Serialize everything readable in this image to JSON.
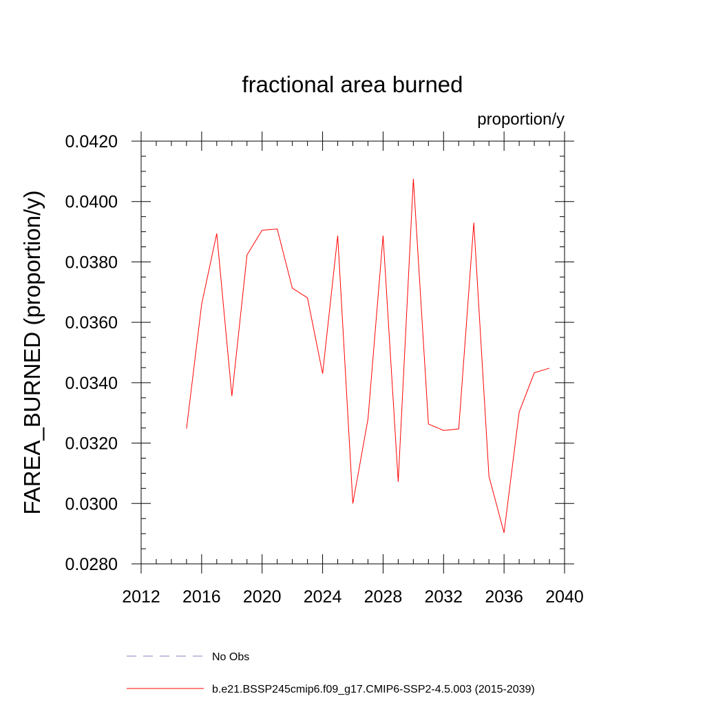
{
  "chart_data": {
    "type": "line",
    "title": "fractional area burned",
    "units_label": "proportion/y",
    "xlabel": "",
    "ylabel": "FAREA_BURNED  (proportion/y)",
    "xlim": [
      2012,
      2040
    ],
    "ylim": [
      0.028,
      0.042
    ],
    "x_ticks": [
      2012,
      2016,
      2020,
      2024,
      2028,
      2032,
      2036,
      2040
    ],
    "x_tick_labels": [
      "2012",
      "2016",
      "2020",
      "2024",
      "2028",
      "2032",
      "2036",
      "2040"
    ],
    "y_ticks": [
      0.028,
      0.03,
      0.032,
      0.034,
      0.036,
      0.038,
      0.04,
      0.042
    ],
    "y_tick_labels": [
      "0.0280",
      "0.0300",
      "0.0320",
      "0.0340",
      "0.0360",
      "0.0380",
      "0.0400",
      "0.0420"
    ],
    "x_minor_step": 1,
    "y_minor_step": 0.0005,
    "grid": false,
    "legend_position": "bottom",
    "series": [
      {
        "name": "b.e21.BSSP245cmip6.f09_g17.CMIP6-SSP2-4.5.003 (2015-2039)",
        "color": "#ff0000",
        "dash": "solid",
        "x": [
          2015,
          2016,
          2017,
          2018,
          2019,
          2020,
          2021,
          2022,
          2023,
          2024,
          2025,
          2026,
          2027,
          2028,
          2029,
          2030,
          2031,
          2032,
          2033,
          2034,
          2035,
          2036,
          2037,
          2038,
          2039
        ],
        "values": [
          0.03248,
          0.0366,
          0.03894,
          0.03356,
          0.03823,
          0.03905,
          0.03909,
          0.03713,
          0.03681,
          0.0343,
          0.03887,
          0.03,
          0.0328,
          0.03887,
          0.03072,
          0.04075,
          0.03263,
          0.03242,
          0.03247,
          0.0393,
          0.0309,
          0.02903,
          0.03303,
          0.03433,
          0.03448
        ]
      }
    ],
    "legend": [
      {
        "label": "No Obs",
        "color": "#8080c0",
        "dash": "dashed"
      },
      {
        "label": "b.e21.BSSP245cmip6.f09_g17.CMIP6-SSP2-4.5.003 (2015-2039)",
        "color": "#ff0000",
        "dash": "solid"
      }
    ]
  }
}
